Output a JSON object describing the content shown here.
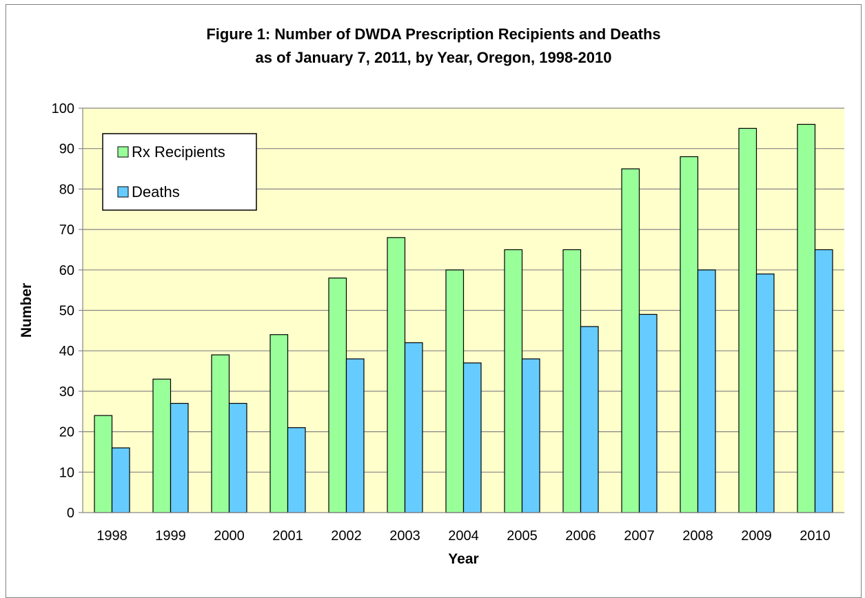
{
  "chart_data": {
    "type": "bar",
    "title": "Figure 1: Number of DWDA Prescription Recipients and Deaths",
    "subtitle": "as of January 7, 2011, by Year, Oregon, 1998-2010",
    "xlabel": "Year",
    "ylabel": "Number",
    "ylim": [
      0,
      100
    ],
    "yticks": [
      "0",
      "10",
      "20",
      "30",
      "40",
      "50",
      "60",
      "70",
      "80",
      "90",
      "100"
    ],
    "categories": [
      "1998",
      "1999",
      "2000",
      "2001",
      "2002",
      "2003",
      "2004",
      "2005",
      "2006",
      "2007",
      "2008",
      "2009",
      "2010"
    ],
    "series": [
      {
        "name": "Rx Recipients",
        "color": "#99ff99",
        "values": [
          24,
          33,
          39,
          44,
          58,
          68,
          60,
          65,
          65,
          85,
          88,
          95,
          96
        ]
      },
      {
        "name": "Deaths",
        "color": "#66ccff",
        "values": [
          16,
          27,
          27,
          21,
          38,
          42,
          37,
          38,
          46,
          49,
          60,
          59,
          65
        ]
      }
    ],
    "plot_background": "#ffffcc",
    "gridlines": true,
    "legend_position": "top-left"
  }
}
